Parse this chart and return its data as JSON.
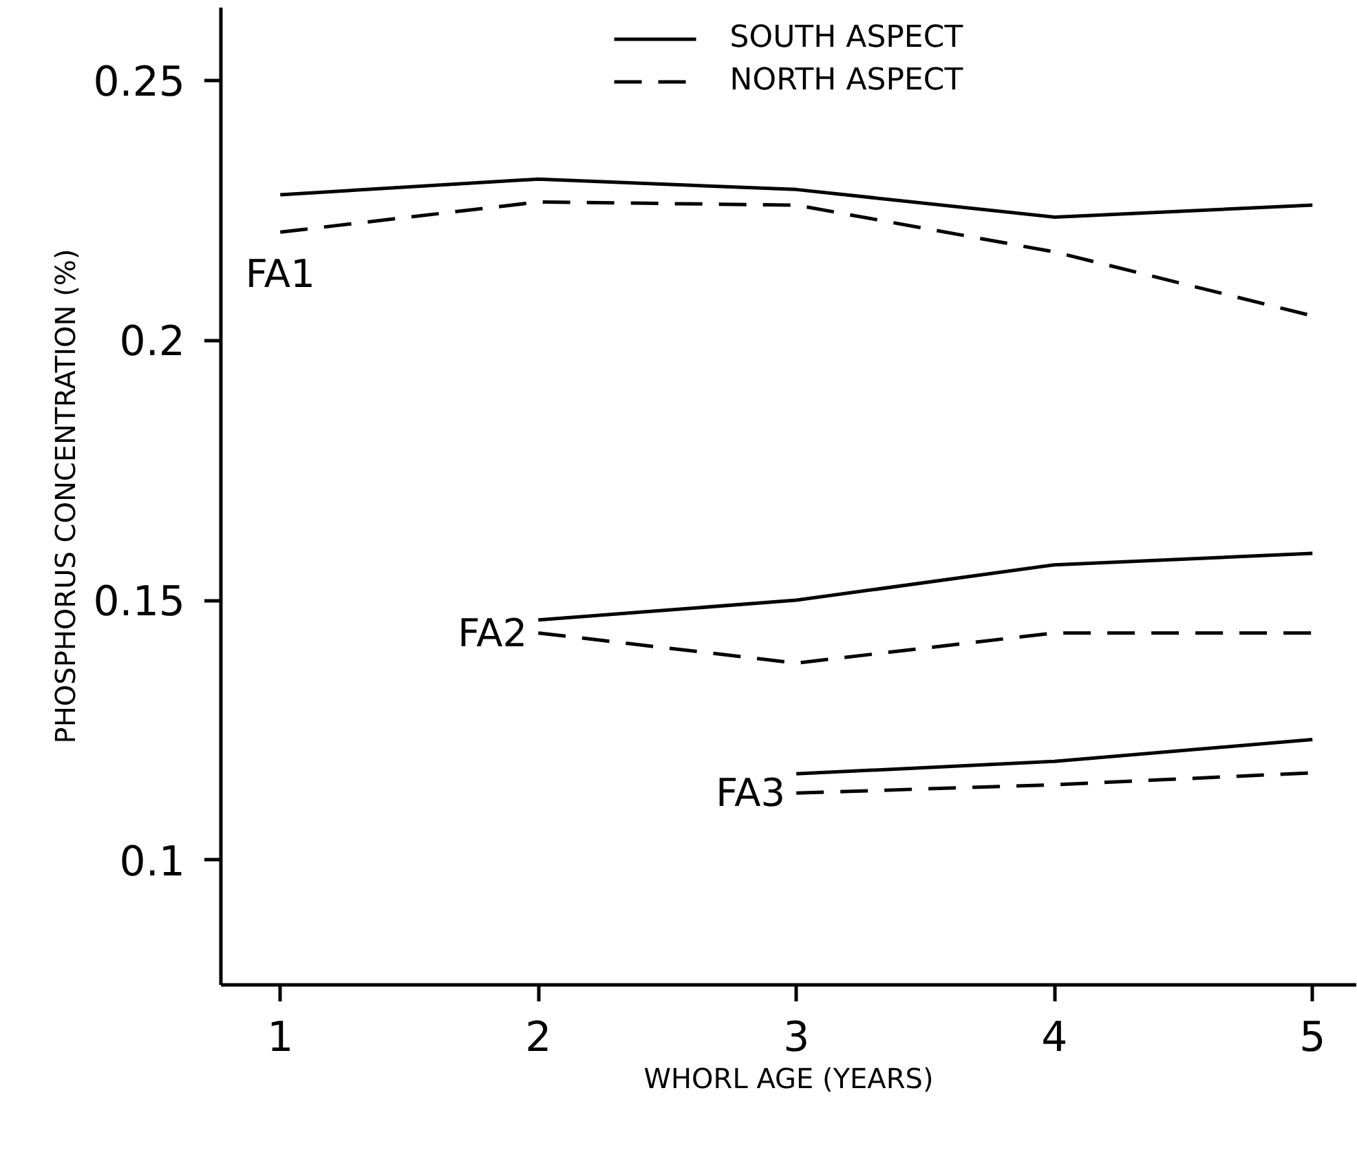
{
  "chart_data": {
    "type": "line",
    "xlabel": "WHORL AGE (YEARS)",
    "ylabel": "PHOSPHORUS CONCENTRATION (%)",
    "xlim": [
      0.77,
      5.17
    ],
    "ylim": [
      0.076,
      0.264
    ],
    "xticks": [
      1,
      2,
      3,
      4,
      5
    ],
    "yticks": [
      0.1,
      0.15,
      0.2,
      0.25
    ],
    "grid": false,
    "legend": "top",
    "marker": "none",
    "series": [
      {
        "name": "SOUTH ASPECT",
        "color": "#000000",
        "line_style": "solid",
        "x": [
          1,
          2,
          3,
          4,
          5
        ],
        "values": [
          0.228,
          0.231,
          0.229,
          0.2237,
          0.226
        ]
      },
      {
        "name": "NORTH ASPECT",
        "color": "#000000",
        "line_style": "dashed",
        "x": [
          1,
          2,
          3,
          4,
          5
        ],
        "values": [
          0.2208,
          0.2266,
          0.226,
          0.217,
          0.2047
        ]
      },
      {
        "color": "#000000",
        "line_style": "solid",
        "x": [
          2,
          3,
          4,
          5
        ],
        "values": [
          0.1462,
          0.15,
          0.1568,
          0.159
        ]
      },
      {
        "color": "#000000",
        "line_style": "dashed",
        "x": [
          2,
          3,
          4,
          5
        ],
        "values": [
          0.1437,
          0.1379,
          0.1437,
          0.1437
        ]
      },
      {
        "color": "#000000",
        "line_style": "solid",
        "x": [
          3,
          4,
          5
        ],
        "values": [
          0.1166,
          0.119,
          0.1232
        ]
      },
      {
        "color": "#000000",
        "line_style": "dashed",
        "x": [
          3,
          4,
          5
        ],
        "values": [
          0.1129,
          0.1145,
          0.1168
        ]
      }
    ],
    "annotations": [
      "FA1",
      "FA2",
      "FA3"
    ]
  }
}
